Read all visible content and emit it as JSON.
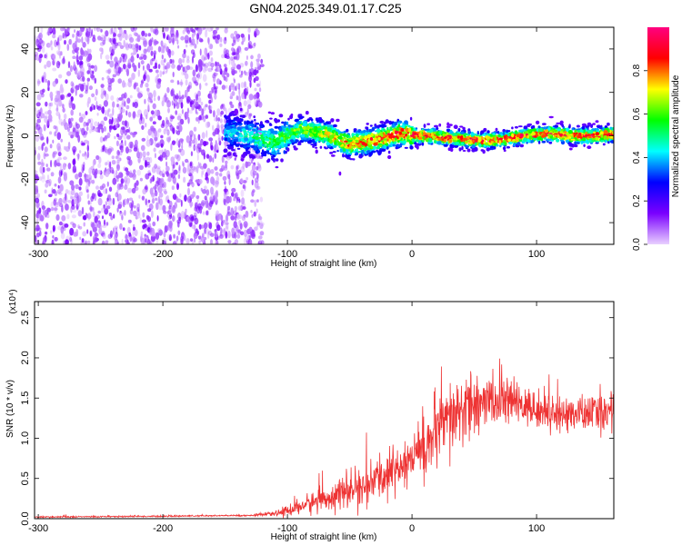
{
  "chart_data": [
    {
      "type": "heatmap",
      "title": "GN04.2025.349.01.17.C25",
      "xlabel": "Height of straight line (km)",
      "ylabel": "Frequency (Hz)",
      "xlim": [
        -303,
        162
      ],
      "ylim": [
        -50,
        50
      ],
      "x_ticks": [
        -300,
        -200,
        -100,
        0,
        100
      ],
      "y_ticks": [
        -40,
        -20,
        0,
        20,
        40
      ],
      "colorbar": {
        "label": "Normalized spectral amplitude",
        "range": [
          0,
          1
        ],
        "ticks": [
          "0.0",
          "0.2",
          "0.4",
          "0.6",
          "0.8"
        ],
        "colors": [
          "#e9d0ff",
          "#7a00ff",
          "#0000ff",
          "#00ffff",
          "#00ff00",
          "#ffff00",
          "#ff0000",
          "#ff0080"
        ]
      },
      "regions": [
        {
          "name": "noise",
          "x_range": [
            -303,
            -120
          ],
          "amplitude": 0.05
        },
        {
          "name": "signal",
          "x_range": [
            -150,
            162
          ],
          "center_frequency": 0,
          "peak_amplitude": 0.9
        }
      ],
      "signal_ridge": {
        "x": [
          -150,
          -130,
          -110,
          -90,
          -70,
          -50,
          -30,
          -10,
          10,
          30,
          50,
          70,
          90,
          110,
          130,
          150,
          162
        ],
        "y": [
          2,
          0,
          -3,
          3,
          1,
          -4,
          -2,
          1,
          0,
          -1,
          -2,
          -2,
          0,
          1,
          0,
          0,
          1
        ]
      }
    },
    {
      "type": "line",
      "xlabel": "Height of straight line (km)",
      "ylabel": "SNR (10 * v/v)",
      "y_multiplier": "(x10⁴)",
      "xlim": [
        -303,
        162
      ],
      "ylim": [
        0,
        2.7
      ],
      "x_ticks": [
        -300,
        -200,
        -100,
        0,
        100
      ],
      "y_ticks": [
        "0.0",
        "0.5",
        "1.0",
        "1.5",
        "2.0",
        "2.5"
      ],
      "series": [
        {
          "color": "#ee3333",
          "x": [
            -303,
            -200,
            -130,
            -110,
            -100,
            -80,
            -60,
            -40,
            -20,
            0,
            20,
            30,
            40,
            60,
            80,
            100,
            120,
            140,
            162
          ],
          "y": [
            0.02,
            0.03,
            0.04,
            0.06,
            0.1,
            0.2,
            0.3,
            0.38,
            0.55,
            0.75,
            1.05,
            1.2,
            1.35,
            1.45,
            1.45,
            1.35,
            1.3,
            1.3,
            1.35
          ],
          "amp": [
            0.01,
            0.01,
            0.01,
            0.03,
            0.08,
            0.15,
            0.2,
            0.25,
            0.3,
            0.4,
            0.5,
            0.55,
            0.5,
            0.35,
            0.3,
            0.25,
            0.25,
            0.25,
            0.3
          ]
        }
      ]
    }
  ]
}
